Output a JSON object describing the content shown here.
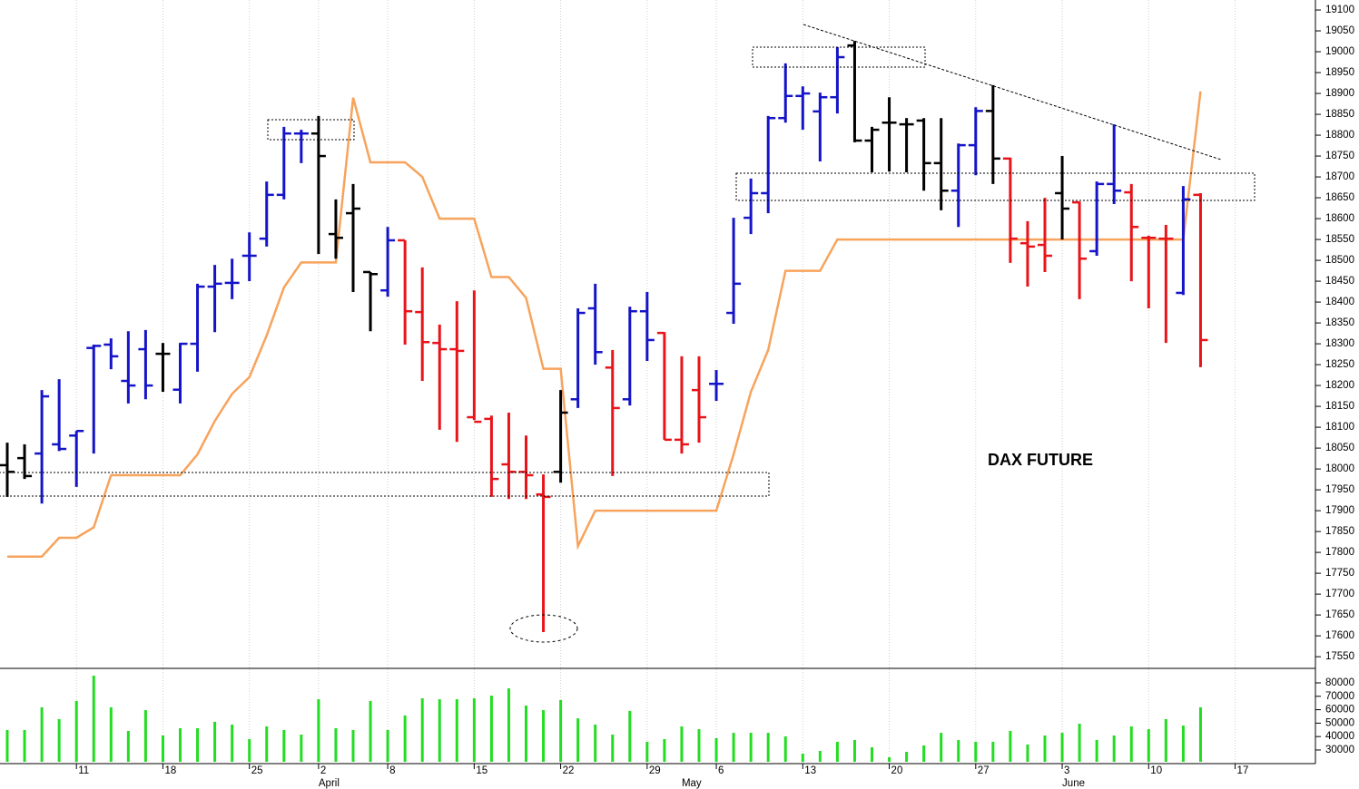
{
  "chart_data": [
    {
      "type": "ohlc",
      "title": "DAX FUTURE",
      "categories": [
        null,
        null,
        null,
        null,
        "11",
        null,
        null,
        null,
        null,
        "18",
        null,
        null,
        null,
        null,
        "25",
        null,
        null,
        null,
        "2",
        null,
        null,
        null,
        "8",
        null,
        null,
        null,
        null,
        "15",
        null,
        null,
        null,
        null,
        "22",
        null,
        null,
        null,
        null,
        "29",
        null,
        null,
        null,
        "6",
        null,
        null,
        null,
        null,
        "13",
        null,
        null,
        null,
        null,
        "20",
        null,
        null,
        null,
        null,
        "27",
        null,
        null,
        null,
        null,
        "3",
        null,
        null,
        null,
        null,
        "10",
        null,
        null,
        null,
        null,
        "17"
      ],
      "months": [
        null,
        null,
        null,
        null,
        null,
        null,
        null,
        null,
        null,
        null,
        null,
        null,
        null,
        null,
        null,
        null,
        null,
        null,
        "April",
        null,
        null,
        null,
        null,
        null,
        null,
        null,
        null,
        null,
        null,
        null,
        null,
        null,
        null,
        null,
        null,
        null,
        null,
        null,
        null,
        "May",
        null,
        null,
        null,
        null,
        null,
        null,
        null,
        null,
        null,
        null,
        null,
        null,
        null,
        null,
        null,
        null,
        null,
        null,
        null,
        null,
        null,
        "June",
        null,
        null,
        null,
        null,
        null,
        null,
        null,
        null,
        null,
        null
      ],
      "open": [
        18009,
        18026,
        18037,
        18059,
        18080,
        18290,
        18298,
        18211,
        18287,
        18276,
        18190,
        18300,
        18437,
        18446,
        18511,
        18552,
        18657,
        18804,
        18804,
        18563,
        18613,
        18472,
        18428,
        18548,
        18376,
        18302,
        18287,
        18124,
        18120,
        18011,
        17993,
        17939,
        17993,
        18167,
        18385,
        18243,
        18167,
        18378,
        18326,
        18070,
        18189,
        18204,
        18374,
        18602,
        18661,
        18841,
        18894,
        18857,
        18891,
        19015,
        18787,
        18830,
        18826,
        18835,
        18733,
        18667,
        18776,
        18858,
        18744,
        18541,
        18537,
        18661,
        18639,
        18522,
        18683,
        18663,
        18554,
        18552,
        18422,
        18657,
        null,
        null
      ],
      "high": [
        18063,
        18059,
        18189,
        18215,
        18091,
        18298,
        18313,
        18330,
        18333,
        18302,
        18302,
        18444,
        18489,
        18504,
        18567,
        18689,
        18820,
        18813,
        18846,
        18646,
        18683,
        18472,
        18580,
        18548,
        18483,
        18346,
        18402,
        18428,
        18128,
        18135,
        18080,
        17987,
        18189,
        18385,
        18444,
        18285,
        18389,
        18424,
        18328,
        18270,
        18270,
        18237,
        18602,
        18696,
        18846,
        18972,
        18917,
        18902,
        19011,
        19026,
        18820,
        18891,
        18841,
        18841,
        18841,
        18780,
        18867,
        18920,
        18746,
        18594,
        18650,
        18750,
        18641,
        18689,
        18826,
        18683,
        18559,
        18585,
        18678,
        18661,
        null,
        null
      ],
      "low": [
        17933,
        17976,
        17917,
        18043,
        17957,
        18037,
        18239,
        18157,
        18167,
        18185,
        18157,
        18233,
        18328,
        18407,
        18450,
        18533,
        18646,
        18733,
        18515,
        18504,
        18424,
        18330,
        18413,
        18298,
        18211,
        18094,
        18065,
        18117,
        17933,
        17928,
        17928,
        17609,
        17967,
        18146,
        18250,
        17983,
        18152,
        18259,
        18070,
        18037,
        18063,
        18163,
        18348,
        18563,
        18613,
        18830,
        18813,
        18737,
        18852,
        18783,
        18711,
        18713,
        18711,
        18667,
        18620,
        18580,
        18704,
        18683,
        18494,
        18437,
        18472,
        18550,
        18407,
        18511,
        18635,
        18450,
        18385,
        18302,
        18417,
        18244,
        null,
        null
      ],
      "close": [
        17993,
        17983,
        18174,
        18048,
        18091,
        18295,
        18270,
        18200,
        18200,
        18276,
        18300,
        18437,
        18444,
        18446,
        18511,
        18657,
        18804,
        18804,
        18750,
        18554,
        18624,
        18467,
        18548,
        18378,
        18304,
        18287,
        18283,
        18113,
        17976,
        17993,
        17985,
        17933,
        18135,
        18374,
        18280,
        18146,
        18378,
        18309,
        18070,
        18059,
        18124,
        18204,
        18444,
        18661,
        18841,
        18894,
        18900,
        18891,
        18987,
        18787,
        18813,
        18830,
        18826,
        18733,
        18667,
        18776,
        18858,
        18744,
        18552,
        18533,
        18511,
        18624,
        18504,
        18683,
        18667,
        18580,
        18554,
        18552,
        18646,
        18309,
        null,
        null
      ],
      "bar_colors": [
        "#000000",
        "#000000",
        "#1414c8",
        "#1414c8",
        "#1414c8",
        "#1414c8",
        "#1414c8",
        "#1414c8",
        "#1414c8",
        "#000000",
        "#1414c8",
        "#1414c8",
        "#1414c8",
        "#1414c8",
        "#1414c8",
        "#1414c8",
        "#1414c8",
        "#1414c8",
        "#000000",
        "#000000",
        "#000000",
        "#000000",
        "#1414c8",
        "#e8141a",
        "#e8141a",
        "#e8141a",
        "#e8141a",
        "#e8141a",
        "#e8141a",
        "#e8141a",
        "#e8141a",
        "#e8141a",
        "#000000",
        "#1414c8",
        "#1414c8",
        "#e8141a",
        "#1414c8",
        "#1414c8",
        "#e8141a",
        "#e8141a",
        "#e8141a",
        "#1414c8",
        "#1414c8",
        "#1414c8",
        "#1414c8",
        "#1414c8",
        "#1414c8",
        "#1414c8",
        "#1414c8",
        "#000000",
        "#000000",
        "#000000",
        "#000000",
        "#000000",
        "#000000",
        "#1414c8",
        "#1414c8",
        "#000000",
        "#e8141a",
        "#e8141a",
        "#e8141a",
        "#000000",
        "#e8141a",
        "#1414c8",
        "#1414c8",
        "#e8141a",
        "#e8141a",
        "#e8141a",
        "#1414c8",
        "#e8141a",
        null,
        null
      ],
      "line": {
        "color": "#f7a35c",
        "values": [
          17790,
          17790,
          17790,
          17835,
          17835,
          17860,
          17985,
          17985,
          17985,
          17985,
          17985,
          18035,
          18115,
          18180,
          18220,
          18320,
          18435,
          18495,
          18495,
          18495,
          18890,
          18735,
          18735,
          18735,
          18700,
          18600,
          18600,
          18600,
          18460,
          18460,
          18410,
          18240,
          18240,
          17815,
          17900,
          17900,
          17900,
          17900,
          17900,
          17900,
          17900,
          17900,
          18035,
          18185,
          18285,
          18475,
          18475,
          18475,
          18550,
          18550,
          18550,
          18550,
          18550,
          18550,
          18550,
          18550,
          18550,
          18550,
          18550,
          18550,
          18550,
          18550,
          18550,
          18550,
          18550,
          18550,
          18550,
          18550,
          18550,
          18905,
          null,
          null
        ]
      },
      "ylim": [
        17522,
        19124
      ],
      "yticks": [
        17550,
        17600,
        17650,
        17700,
        17750,
        17800,
        17850,
        17900,
        17950,
        18000,
        18050,
        18100,
        18150,
        18200,
        18250,
        18300,
        18350,
        18400,
        18450,
        18500,
        18550,
        18600,
        18650,
        18700,
        18750,
        18800,
        18850,
        18900,
        18950,
        19000,
        19050,
        19100
      ],
      "grid": true
    },
    {
      "type": "bar",
      "color": "#22dd22",
      "values": [
        44900,
        44900,
        61800,
        53000,
        66500,
        85400,
        61800,
        44200,
        59700,
        40800,
        46200,
        46200,
        51000,
        48900,
        38100,
        47600,
        44900,
        41500,
        67800,
        46200,
        44900,
        66500,
        44900,
        55700,
        68500,
        67800,
        67800,
        68500,
        70500,
        75900,
        63100,
        59700,
        67200,
        53600,
        48900,
        41500,
        59100,
        36100,
        38100,
        47600,
        45500,
        38800,
        42800,
        42800,
        42800,
        40100,
        27300,
        29300,
        36100,
        37400,
        32000,
        24600,
        28600,
        33400,
        42800,
        37400,
        36100,
        36100,
        44200,
        34100,
        40800,
        42800,
        49600,
        37400,
        40800,
        47600,
        45500,
        53000,
        48200,
        61800,
        null,
        null
      ],
      "ylim": [
        21200,
        90800
      ],
      "yticks": [
        30000,
        40000,
        50000,
        60000,
        70000,
        80000
      ]
    }
  ]
}
